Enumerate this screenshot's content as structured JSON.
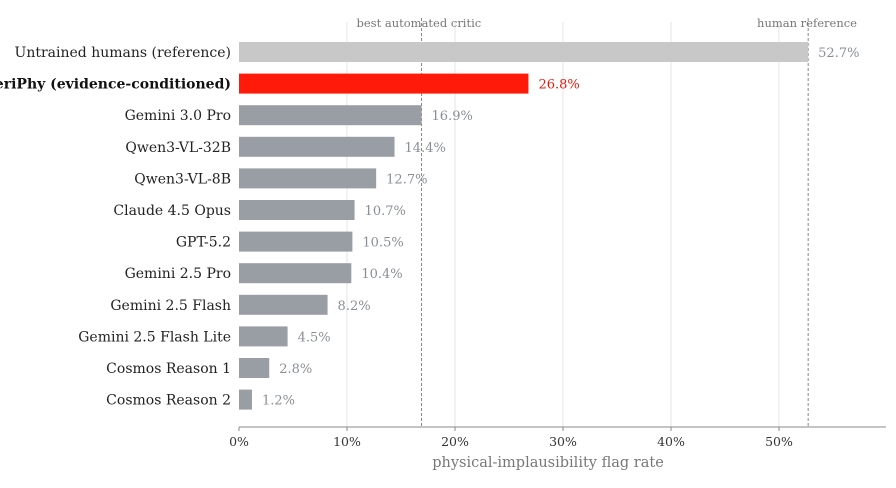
{
  "chart_data": {
    "type": "bar",
    "orientation": "horizontal",
    "xlabel": "physical-implausibility flag rate",
    "ylabel": "",
    "xlim": [
      0,
      60
    ],
    "xticks": [
      "0%",
      "10%",
      "20%",
      "30%",
      "40%",
      "50%"
    ],
    "grid": true,
    "categories": [
      "Untrained humans (reference)",
      "VeriPhy (evidence-conditioned)",
      "Gemini 3.0 Pro",
      "Qwen3-VL-32B",
      "Qwen3-VL-8B",
      "Claude 4.5 Opus",
      "GPT-5.2",
      "Gemini 2.5 Pro",
      "Gemini 2.5 Flash",
      "Gemini 2.5 Flash Lite",
      "Cosmos Reason 1",
      "Cosmos Reason 2"
    ],
    "values": [
      52.7,
      26.8,
      16.9,
      14.4,
      12.7,
      10.7,
      10.5,
      10.4,
      8.2,
      4.5,
      2.8,
      1.2
    ],
    "value_labels": [
      "52.7%",
      "26.8%",
      "16.9%",
      "14.4%",
      "12.7%",
      "10.7%",
      "10.5%",
      "10.4%",
      "8.2%",
      "4.5%",
      "2.8%",
      "1.2%"
    ],
    "highlight_index": 1,
    "reference_index": 0,
    "reference_lines": [
      {
        "label": "best automated critic",
        "value": 16.9
      },
      {
        "label": "human reference",
        "value": 52.7
      }
    ],
    "colors": {
      "reference_bar": "#c8c8c8",
      "highlight_bar": "#ff1a0a",
      "default_bar": "#999ea5",
      "highlight_label": "#e8180c",
      "value_label": "#8a8f96",
      "grid": "#e4e4e4",
      "ref_line": "#888888",
      "axis": "#888888"
    }
  }
}
